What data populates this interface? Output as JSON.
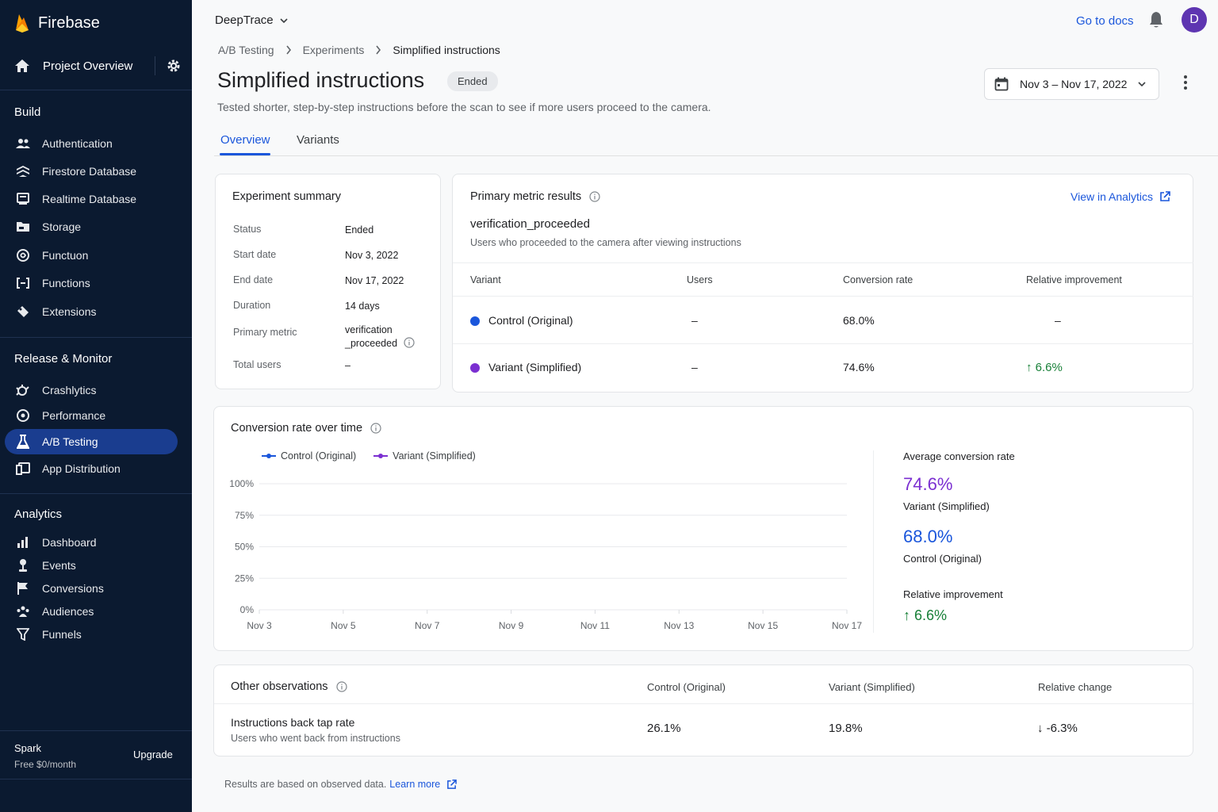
{
  "sidebar": {
    "brand": "Firebase",
    "project_overview": "Project Overview",
    "sections": {
      "build": "Build",
      "release": "Release & Monitor",
      "analytics": "Analytics"
    },
    "build_items": [
      {
        "label": "Authentication",
        "icon": "people-icon"
      },
      {
        "label": "Firestore Database",
        "icon": "firestore-icon"
      },
      {
        "label": "Realtime Database",
        "icon": "realtime-db-icon"
      },
      {
        "label": "Storage",
        "icon": "folder-icon"
      },
      {
        "label": "Functuon",
        "icon": "hosting-icon"
      },
      {
        "label": "Functions",
        "icon": "functions-icon"
      },
      {
        "label": "Extensions",
        "icon": "extensions-icon"
      }
    ],
    "release_items": [
      {
        "label": "Crashlytics",
        "icon": "crashlytics-icon"
      },
      {
        "label": "Performance",
        "icon": "performance-icon"
      },
      {
        "label": "A/B Testing",
        "icon": "flask-icon"
      },
      {
        "label": "App Distribution",
        "icon": "app-distribution-icon"
      }
    ],
    "analytics_items": [
      {
        "label": "Dashboard",
        "icon": "bar-chart-icon"
      },
      {
        "label": "Events",
        "icon": "events-icon"
      },
      {
        "label": "Conversions",
        "icon": "flag-icon"
      },
      {
        "label": "Audiences",
        "icon": "audiences-icon"
      },
      {
        "label": "Funnels",
        "icon": "funnel-icon"
      }
    ],
    "plan_name": "Spark",
    "plan_price": "Free $0/month",
    "upgrade": "Upgrade"
  },
  "header": {
    "project": "DeepTrace",
    "docs_link": "Go to docs",
    "avatar_initial": "D"
  },
  "breadcrumb": [
    "A/B Testing",
    "Experiments",
    "Simplified instructions"
  ],
  "page": {
    "title": "Simplified instructions",
    "status_badge": "Ended",
    "description": "Tested shorter, step-by-step instructions before the scan to see if more users proceed to the camera.",
    "date_range": "Nov 3 – Nov 17, 2022"
  },
  "tabs": [
    "Overview",
    "Variants"
  ],
  "summary": {
    "title": "Experiment summary",
    "rows": [
      {
        "key": "Status",
        "value": "Ended"
      },
      {
        "key": "Start date",
        "value": "Nov 3, 2022"
      },
      {
        "key": "End date",
        "value": "Nov 17, 2022"
      },
      {
        "key": "Duration",
        "value": "14 days"
      },
      {
        "key": "Primary metric",
        "value": "verification _proceeded"
      },
      {
        "key": "Total users",
        "value": "–"
      }
    ]
  },
  "primary": {
    "title": "Primary metric results",
    "analytics_link": "View in Analytics",
    "metric": "verification_proceeded",
    "metric_desc": "Users who proceeded to the camera after viewing instructions",
    "columns": [
      "Variant",
      "Users",
      "Conversion rate",
      "Relative improvement"
    ],
    "rows": [
      {
        "variant": "Control (Original)",
        "users": "–",
        "rate": "68.0%",
        "improvement": "–"
      },
      {
        "variant": "Variant (Simplified)",
        "users": "–",
        "rate": "74.6%",
        "improvement": "↑ 6.6%"
      }
    ]
  },
  "colors": {
    "control": "#1a56db",
    "variant": "#7b2fd1",
    "positive": "#188038"
  },
  "chart": {
    "title": "Conversion rate over time",
    "avg_label": "Average conversion rate",
    "avg_variant_value": "74.6%",
    "avg_variant_name": "Variant (Simplified)",
    "avg_control_value": "68.0%",
    "avg_control_name": "Control (Original)",
    "rel_label": "Relative improvement",
    "rel_value": "↑ 6.6%"
  },
  "chart_data": {
    "type": "line",
    "title": "Conversion rate over time",
    "x": [
      "Nov 3",
      "Nov 4",
      "Nov 5",
      "Nov 6",
      "Nov 7",
      "Nov 8",
      "Nov 9",
      "Nov 10",
      "Nov 11",
      "Nov 12",
      "Nov 13",
      "Nov 14",
      "Nov 15",
      "Nov 16",
      "Nov 17"
    ],
    "x_tick_labels": [
      "Nov 3",
      "Nov 5",
      "Nov 7",
      "Nov 9",
      "Nov 11",
      "Nov 13",
      "Nov 15",
      "Nov 17"
    ],
    "y_tick_labels": [
      "100%",
      "75%",
      "50%",
      "25%",
      "0%"
    ],
    "ylim": [
      0,
      100
    ],
    "grid": true,
    "legend": "top-left",
    "series": [
      {
        "name": "Control (Original)",
        "values": [
          null,
          null,
          null,
          null,
          null,
          null,
          null,
          null,
          null,
          null,
          null,
          null,
          null,
          null,
          null
        ]
      },
      {
        "name": "Variant (Simplified)",
        "values": [
          null,
          null,
          null,
          null,
          null,
          null,
          null,
          null,
          null,
          null,
          null,
          null,
          null,
          null,
          null
        ]
      }
    ]
  },
  "observations": {
    "title": "Other observations",
    "columns": [
      "Control (Original)",
      "Variant (Simplified)",
      "Relative change"
    ],
    "rows": [
      {
        "metric": "Instructions back tap rate",
        "desc": "Users who went back from instructions",
        "control": "26.1%",
        "variant": "19.8%",
        "change": "↓ -6.3%"
      }
    ]
  },
  "footer": {
    "note": "Results are based on observed data.",
    "learn_more": "Learn more"
  }
}
